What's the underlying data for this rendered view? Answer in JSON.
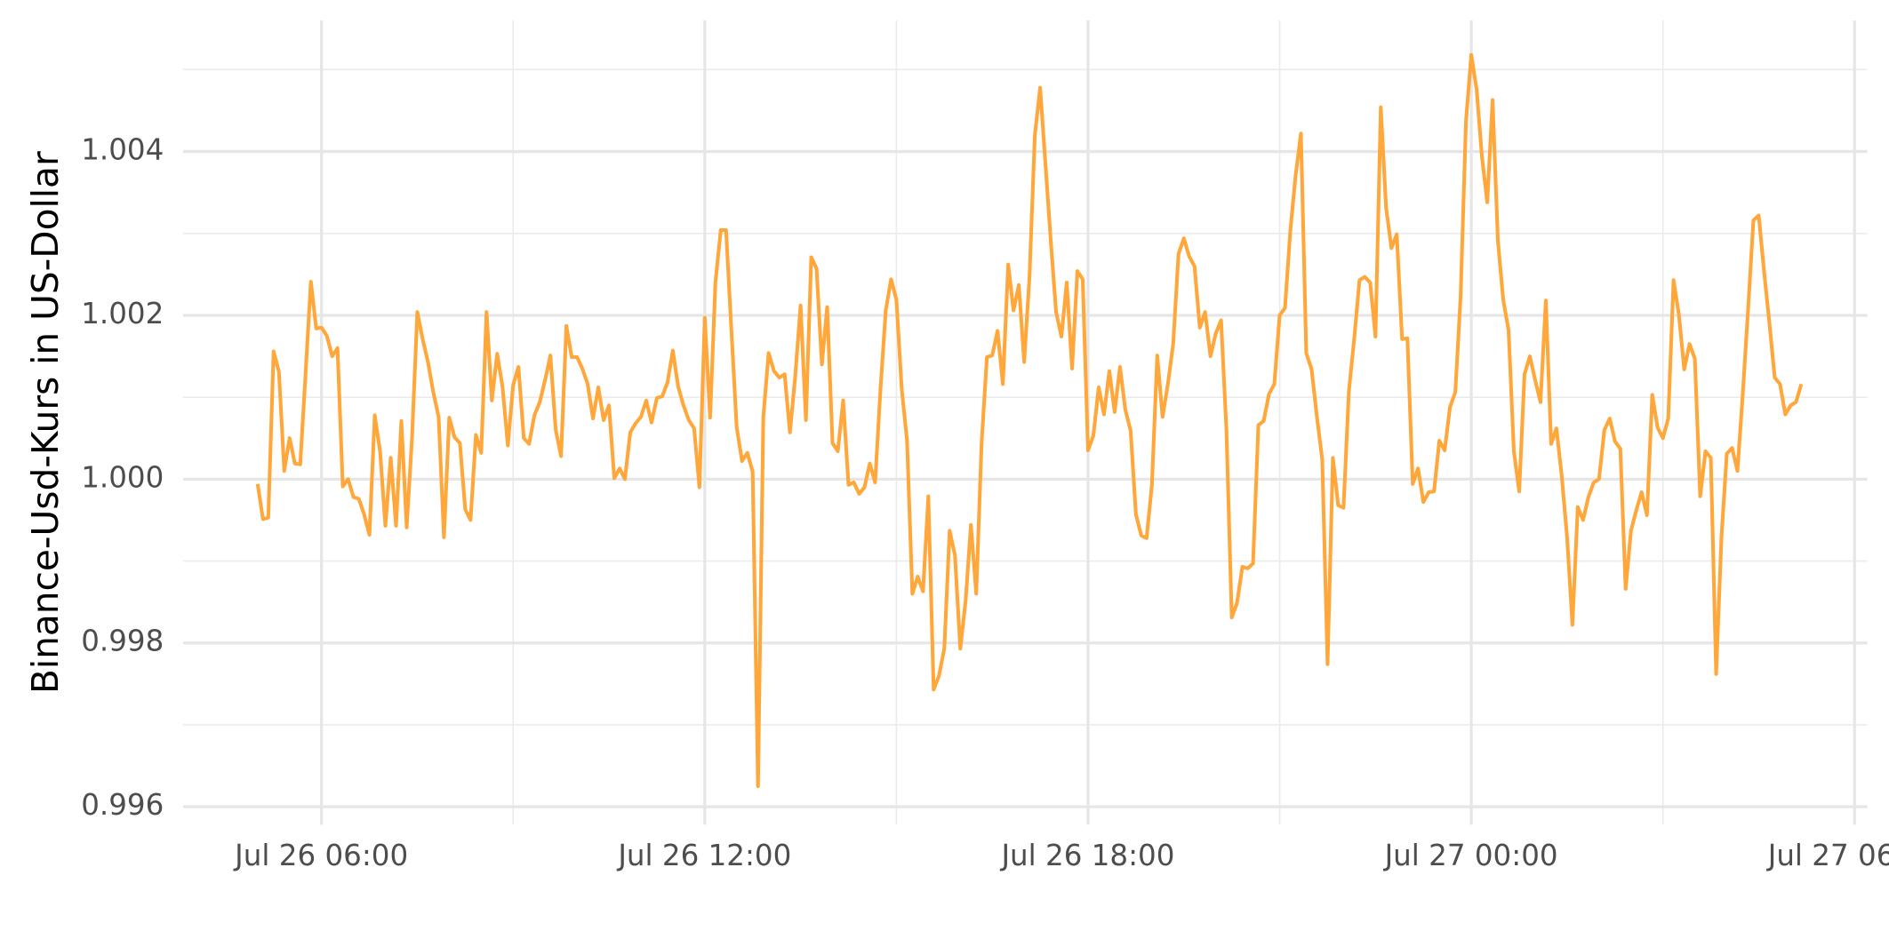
{
  "chart_data": {
    "type": "line",
    "y_label": "Binance-Usd-Kurs in US-Dollar",
    "xlim": [
      "Jul 26 03:50",
      "Jul 27 06:12"
    ],
    "xticks": [
      "Jul 26 06:00",
      "Jul 26 12:00",
      "Jul 26 18:00",
      "Jul 27 00:00",
      "Jul 27 06:00"
    ],
    "ylim": [
      0.99578,
      1.0056
    ],
    "yticks": [
      0.996,
      0.998,
      {
        "value": 1.0,
        "label": "1.000"
      },
      1.002,
      1.004
    ],
    "grid": true,
    "x": [
      "Jul 26 05:00",
      "Jul 26 05:05",
      "Jul 26 05:10",
      "Jul 26 05:15",
      "Jul 26 05:20",
      "Jul 26 05:25",
      "Jul 26 05:30",
      "Jul 26 05:35",
      "Jul 26 05:40",
      "Jul 26 05:45",
      "Jul 26 05:50",
      "Jul 26 05:55",
      "Jul 26 06:00",
      "Jul 26 06:05",
      "Jul 26 06:10",
      "Jul 26 06:15",
      "Jul 26 06:20",
      "Jul 26 06:25",
      "Jul 26 06:30",
      "Jul 26 06:35",
      "Jul 26 06:40",
      "Jul 26 06:45",
      "Jul 26 06:50",
      "Jul 26 06:55",
      "Jul 26 07:00",
      "Jul 26 07:05",
      "Jul 26 07:10",
      "Jul 26 07:15",
      "Jul 26 07:20",
      "Jul 26 07:25",
      "Jul 26 07:30",
      "Jul 26 07:35",
      "Jul 26 07:40",
      "Jul 26 07:45",
      "Jul 26 07:50",
      "Jul 26 07:55",
      "Jul 26 08:00",
      "Jul 26 08:05",
      "Jul 26 08:10",
      "Jul 26 08:15",
      "Jul 26 08:20",
      "Jul 26 08:25",
      "Jul 26 08:30",
      "Jul 26 08:35",
      "Jul 26 08:40",
      "Jul 26 08:45",
      "Jul 26 08:50",
      "Jul 26 08:55",
      "Jul 26 09:00",
      "Jul 26 09:05",
      "Jul 26 09:10",
      "Jul 26 09:15",
      "Jul 26 09:20",
      "Jul 26 09:25",
      "Jul 26 09:30",
      "Jul 26 09:35",
      "Jul 26 09:40",
      "Jul 26 09:45",
      "Jul 26 09:50",
      "Jul 26 09:55",
      "Jul 26 10:00",
      "Jul 26 10:05",
      "Jul 26 10:10",
      "Jul 26 10:15",
      "Jul 26 10:20",
      "Jul 26 10:25",
      "Jul 26 10:30",
      "Jul 26 10:35",
      "Jul 26 10:40",
      "Jul 26 10:45",
      "Jul 26 10:50",
      "Jul 26 10:55",
      "Jul 26 11:00",
      "Jul 26 11:05",
      "Jul 26 11:10",
      "Jul 26 11:15",
      "Jul 26 11:20",
      "Jul 26 11:25",
      "Jul 26 11:30",
      "Jul 26 11:35",
      "Jul 26 11:40",
      "Jul 26 11:45",
      "Jul 26 11:50",
      "Jul 26 11:55",
      "Jul 26 12:00",
      "Jul 26 12:05",
      "Jul 26 12:10",
      "Jul 26 12:15",
      "Jul 26 12:20",
      "Jul 26 12:25",
      "Jul 26 12:30",
      "Jul 26 12:35",
      "Jul 26 12:40",
      "Jul 26 12:45",
      "Jul 26 12:50",
      "Jul 26 12:55",
      "Jul 26 13:00",
      "Jul 26 13:05",
      "Jul 26 13:10",
      "Jul 26 13:15",
      "Jul 26 13:20",
      "Jul 26 13:25",
      "Jul 26 13:30",
      "Jul 26 13:35",
      "Jul 26 13:40",
      "Jul 26 13:45",
      "Jul 26 13:50",
      "Jul 26 13:55",
      "Jul 26 14:00",
      "Jul 26 14:05",
      "Jul 26 14:10",
      "Jul 26 14:15",
      "Jul 26 14:20",
      "Jul 26 14:25",
      "Jul 26 14:30",
      "Jul 26 14:35",
      "Jul 26 14:40",
      "Jul 26 14:45",
      "Jul 26 14:50",
      "Jul 26 14:55",
      "Jul 26 15:00",
      "Jul 26 15:05",
      "Jul 26 15:10",
      "Jul 26 15:15",
      "Jul 26 15:20",
      "Jul 26 15:25",
      "Jul 26 15:30",
      "Jul 26 15:35",
      "Jul 26 15:40",
      "Jul 26 15:45",
      "Jul 26 15:50",
      "Jul 26 15:55",
      "Jul 26 16:00",
      "Jul 26 16:05",
      "Jul 26 16:10",
      "Jul 26 16:15",
      "Jul 26 16:20",
      "Jul 26 16:25",
      "Jul 26 16:30",
      "Jul 26 16:35",
      "Jul 26 16:40",
      "Jul 26 16:45",
      "Jul 26 16:50",
      "Jul 26 16:55",
      "Jul 26 17:00",
      "Jul 26 17:05",
      "Jul 26 17:10",
      "Jul 26 17:15",
      "Jul 26 17:20",
      "Jul 26 17:25",
      "Jul 26 17:30",
      "Jul 26 17:35",
      "Jul 26 17:40",
      "Jul 26 17:45",
      "Jul 26 17:50",
      "Jul 26 17:55",
      "Jul 26 18:00",
      "Jul 26 18:05",
      "Jul 26 18:10",
      "Jul 26 18:15",
      "Jul 26 18:20",
      "Jul 26 18:25",
      "Jul 26 18:30",
      "Jul 26 18:35",
      "Jul 26 18:40",
      "Jul 26 18:45",
      "Jul 26 18:50",
      "Jul 26 18:55",
      "Jul 26 19:00",
      "Jul 26 19:05",
      "Jul 26 19:10",
      "Jul 26 19:15",
      "Jul 26 19:20",
      "Jul 26 19:25",
      "Jul 26 19:30",
      "Jul 26 19:35",
      "Jul 26 19:40",
      "Jul 26 19:45",
      "Jul 26 19:50",
      "Jul 26 19:55",
      "Jul 26 20:00",
      "Jul 26 20:05",
      "Jul 26 20:10",
      "Jul 26 20:15",
      "Jul 26 20:20",
      "Jul 26 20:25",
      "Jul 26 20:30",
      "Jul 26 20:35",
      "Jul 26 20:40",
      "Jul 26 20:45",
      "Jul 26 20:50",
      "Jul 26 20:55",
      "Jul 26 21:00",
      "Jul 26 21:05",
      "Jul 26 21:10",
      "Jul 26 21:15",
      "Jul 26 21:20",
      "Jul 26 21:25",
      "Jul 26 21:30",
      "Jul 26 21:35",
      "Jul 26 21:40",
      "Jul 26 21:45",
      "Jul 26 21:50",
      "Jul 26 21:55",
      "Jul 26 22:00",
      "Jul 26 22:05",
      "Jul 26 22:10",
      "Jul 26 22:15",
      "Jul 26 22:20",
      "Jul 26 22:25",
      "Jul 26 22:30",
      "Jul 26 22:35",
      "Jul 26 22:40",
      "Jul 26 22:45",
      "Jul 26 22:50",
      "Jul 26 22:55",
      "Jul 26 23:00",
      "Jul 26 23:05",
      "Jul 26 23:10",
      "Jul 26 23:15",
      "Jul 26 23:20",
      "Jul 26 23:25",
      "Jul 26 23:30",
      "Jul 26 23:35",
      "Jul 26 23:40",
      "Jul 26 23:45",
      "Jul 26 23:50",
      "Jul 26 23:55",
      "Jul 27 00:00",
      "Jul 27 00:05",
      "Jul 27 00:10",
      "Jul 27 00:15",
      "Jul 27 00:20",
      "Jul 27 00:25",
      "Jul 27 00:30",
      "Jul 27 00:35",
      "Jul 27 00:40",
      "Jul 27 00:45",
      "Jul 27 00:50",
      "Jul 27 00:55",
      "Jul 27 01:00",
      "Jul 27 01:05",
      "Jul 27 01:10",
      "Jul 27 01:15",
      "Jul 27 01:20",
      "Jul 27 01:25",
      "Jul 27 01:30",
      "Jul 27 01:35",
      "Jul 27 01:40",
      "Jul 27 01:45",
      "Jul 27 01:50",
      "Jul 27 01:55",
      "Jul 27 02:00",
      "Jul 27 02:05",
      "Jul 27 02:10",
      "Jul 27 02:15",
      "Jul 27 02:20",
      "Jul 27 02:25",
      "Jul 27 02:30",
      "Jul 27 02:35",
      "Jul 27 02:40",
      "Jul 27 02:45",
      "Jul 27 02:50",
      "Jul 27 02:55",
      "Jul 27 03:00",
      "Jul 27 03:05",
      "Jul 27 03:10",
      "Jul 27 03:15",
      "Jul 27 03:20",
      "Jul 27 03:25",
      "Jul 27 03:30",
      "Jul 27 03:35",
      "Jul 27 03:40",
      "Jul 27 03:45",
      "Jul 27 03:50",
      "Jul 27 03:55",
      "Jul 27 04:00",
      "Jul 27 04:05",
      "Jul 27 04:10",
      "Jul 27 04:15",
      "Jul 27 04:20",
      "Jul 27 04:25",
      "Jul 27 04:30",
      "Jul 27 04:35",
      "Jul 27 04:40",
      "Jul 27 04:45",
      "Jul 27 04:50",
      "Jul 27 04:55",
      "Jul 27 05:00",
      "Jul 27 05:05",
      "Jul 27 05:10"
    ],
    "series": [
      {
        "color": "#ffa73a",
        "values": [
          0.99994,
          0.99951,
          0.99953,
          1.00156,
          1.00131,
          1.0001,
          1.0005,
          1.00019,
          1.00018,
          1.00128,
          1.00241,
          1.00184,
          1.00185,
          1.00175,
          1.0015,
          1.0016,
          0.99991,
          1.0,
          0.99978,
          0.99976,
          0.99957,
          0.99932,
          1.00078,
          1.00034,
          0.99943,
          1.00026,
          0.99943,
          1.00071,
          0.99941,
          1.0005,
          1.00204,
          1.00171,
          1.00143,
          1.00106,
          1.00076,
          0.99929,
          1.00075,
          1.00051,
          1.00044,
          0.99963,
          0.9995,
          1.00054,
          1.00032,
          1.00204,
          1.00096,
          1.00153,
          1.00113,
          1.00041,
          1.00115,
          1.00137,
          1.0005,
          1.00043,
          1.00078,
          1.00094,
          1.00121,
          1.00151,
          1.0006,
          1.00028,
          1.00187,
          1.00149,
          1.00149,
          1.00135,
          1.00116,
          1.00074,
          1.00112,
          1.00072,
          1.0009,
          1.00001,
          1.00013,
          1.0,
          1.00057,
          1.00068,
          1.00076,
          1.00096,
          1.00069,
          1.00099,
          1.00101,
          1.00118,
          1.00157,
          1.00113,
          1.0009,
          1.00072,
          1.00062,
          0.9999,
          1.00197,
          1.00075,
          1.0024,
          1.00304,
          1.00304,
          1.00182,
          1.00063,
          1.00022,
          1.00032,
          1.00009,
          0.99625,
          1.00076,
          1.00154,
          1.00132,
          1.00124,
          1.00128,
          1.00057,
          1.00126,
          1.00212,
          1.00072,
          1.00271,
          1.00257,
          1.0014,
          1.0021,
          1.00044,
          1.00034,
          1.00096,
          0.99993,
          0.99996,
          0.99982,
          0.9999,
          1.00019,
          0.99996,
          1.00109,
          1.00206,
          1.00244,
          1.00219,
          1.0011,
          1.00047,
          0.9986,
          0.99881,
          0.99863,
          0.99979,
          0.99743,
          0.9976,
          0.99793,
          0.99937,
          0.99907,
          0.99793,
          0.99851,
          0.99944,
          0.9986,
          1.00043,
          1.00149,
          1.00151,
          1.00181,
          1.00116,
          1.00262,
          1.00206,
          1.00237,
          1.00143,
          1.00246,
          1.00419,
          1.00478,
          1.00385,
          1.00291,
          1.00204,
          1.00174,
          1.0024,
          1.00135,
          1.00254,
          1.00244,
          1.00035,
          1.00053,
          1.00112,
          1.00079,
          1.00132,
          1.00082,
          1.00137,
          1.00085,
          1.00059,
          0.99957,
          0.99931,
          0.99928,
          0.99993,
          1.00151,
          1.00076,
          1.00116,
          1.00165,
          1.00275,
          1.00294,
          1.00272,
          1.0026,
          1.00185,
          1.00204,
          1.0015,
          1.00178,
          1.00194,
          1.0006,
          0.99831,
          0.99849,
          0.99893,
          0.99891,
          0.99897,
          1.00066,
          1.00071,
          1.00104,
          1.00116,
          1.002,
          1.00209,
          1.00303,
          1.00371,
          1.00422,
          1.00154,
          1.00134,
          1.00076,
          1.00024,
          0.99774,
          1.00026,
          0.99968,
          0.99965,
          1.00107,
          1.00171,
          1.00243,
          1.00247,
          1.0024,
          1.00174,
          1.00454,
          1.00331,
          1.00282,
          1.00299,
          1.00171,
          1.00172,
          0.99994,
          1.00013,
          0.99972,
          0.99984,
          0.99985,
          1.00047,
          1.00035,
          1.00088,
          1.00106,
          1.00224,
          1.00437,
          1.00518,
          1.00476,
          1.00394,
          1.00338,
          1.00463,
          1.00291,
          1.00219,
          1.00182,
          1.00034,
          0.99985,
          1.00128,
          1.0015,
          1.00121,
          1.00094,
          1.00218,
          1.00043,
          1.00062,
          1.00003,
          0.99929,
          0.99822,
          0.99966,
          0.9995,
          0.99978,
          0.99996,
          1.0,
          1.0006,
          1.00074,
          1.00046,
          1.00037,
          0.99866,
          0.99937,
          0.99962,
          0.99984,
          0.99956,
          1.00103,
          1.00063,
          1.0005,
          1.00074,
          1.00243,
          1.00201,
          1.00134,
          1.00165,
          1.00147,
          0.99979,
          1.00034,
          1.00026,
          0.99762,
          0.99929,
          1.00031,
          1.00038,
          1.0001,
          1.00104,
          1.00207,
          1.00316,
          1.00322,
          1.00254,
          1.00191,
          1.00124,
          1.00116,
          1.00079,
          1.0009,
          1.00094,
          1.00116
        ]
      }
    ]
  }
}
